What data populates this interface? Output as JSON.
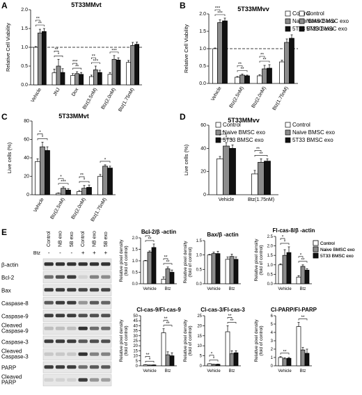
{
  "panel_letters": [
    "A",
    "B",
    "C",
    "D",
    "E"
  ],
  "colors": {
    "control": "#ffffff",
    "naive": "#8c8c8c",
    "bmsc5t33": "#111111",
    "stroke": "#000000"
  },
  "chart_data": [
    {
      "id": "A",
      "type": "bar",
      "title": "5T33MMvt",
      "ylabel": "Relative Cell Viability",
      "ylim": [
        0,
        2.0
      ],
      "yticks": [
        "0.0",
        "0.5",
        "1.0",
        "1.5",
        "2.0"
      ],
      "reference_line": 1.0,
      "legend": "top-right",
      "categories": [
        "Vehicle",
        "JNJ",
        "Dox",
        "Btz(3.5nM)",
        "Btz(2.0nM)",
        "Btz(1.75nM)"
      ],
      "series": [
        {
          "name": "Control",
          "values": [
            1.0,
            0.32,
            0.25,
            0.22,
            0.28,
            0.6
          ],
          "errors": [
            0.02,
            0.1,
            0.05,
            0.04,
            0.05,
            0.05
          ]
        },
        {
          "name": "Naive BMSC exo",
          "values": [
            1.38,
            0.5,
            0.3,
            0.4,
            0.68,
            1.05
          ],
          "errors": [
            0.1,
            0.18,
            0.05,
            0.1,
            0.1,
            0.08
          ]
        },
        {
          "name": "5T33 BMSC exo",
          "values": [
            1.42,
            0.33,
            0.28,
            0.33,
            0.66,
            1.08
          ],
          "errors": [
            0.08,
            0.1,
            0.05,
            0.06,
            0.06,
            0.06
          ]
        }
      ],
      "significance": [
        "**",
        "**",
        "*",
        "**",
        "**",
        "***",
        "***",
        "**",
        "***"
      ]
    },
    {
      "id": "B",
      "type": "bar",
      "title": "5T33MMvv",
      "ylabel": "Relative Cell Viability",
      "ylim": [
        0,
        2.0
      ],
      "yticks": [
        "0.0",
        "0.5",
        "1.0",
        "1.5",
        "2.0"
      ],
      "reference_line": 1.0,
      "legend": "top-right",
      "categories": [
        "Vehicle",
        "Btz(2.5nM)",
        "Btz(2.0nM)",
        "Btz(1.75nM)"
      ],
      "series": [
        {
          "name": "Control",
          "values": [
            1.0,
            0.18,
            0.22,
            0.62
          ],
          "errors": [
            0.02,
            0.02,
            0.03,
            0.05
          ]
        },
        {
          "name": "Naive BMSC exo",
          "values": [
            1.75,
            0.24,
            0.42,
            1.18
          ],
          "errors": [
            0.08,
            0.03,
            0.1,
            0.1
          ]
        },
        {
          "name": "5T33 BMSC exo",
          "values": [
            1.8,
            0.22,
            0.44,
            1.3
          ],
          "errors": [
            0.08,
            0.02,
            0.1,
            0.1
          ]
        }
      ],
      "significance": [
        "***",
        "***",
        "**",
        "**",
        "**",
        "**"
      ]
    },
    {
      "id": "C",
      "type": "bar",
      "title": "5T33MMvt",
      "ylabel": "Live cells (%)",
      "ylim": [
        0,
        80
      ],
      "yticks": [
        "0",
        "20",
        "40",
        "60",
        "80"
      ],
      "legend": "top-right",
      "categories": [
        "Vehicle",
        "Btz(2.5nM)",
        "Btz(2.0nM)",
        "Btz(1.75nM)"
      ],
      "series": [
        {
          "name": "Control",
          "values": [
            36,
            1.5,
            3.5,
            20
          ],
          "errors": [
            3,
            0.5,
            1,
            2
          ]
        },
        {
          "name": "Naive BMSC exo",
          "values": [
            52,
            7,
            7,
            31
          ],
          "errors": [
            5,
            1.5,
            3,
            1.5
          ]
        },
        {
          "name": "5T33 BMSC exo",
          "values": [
            48,
            5,
            8,
            29
          ],
          "errors": [
            4,
            1.5,
            2.5,
            2
          ]
        }
      ],
      "significance": [
        "*",
        "*",
        "***",
        "*",
        "*",
        "**",
        "*"
      ]
    },
    {
      "id": "D",
      "type": "bar",
      "title": "5T33MMvv",
      "ylabel": "Live cells (%)",
      "ylim": [
        0,
        60
      ],
      "yticks": [
        "0",
        "20",
        "40",
        "60"
      ],
      "legend": "top-right",
      "categories": [
        "Vehicle",
        "Btz(1.75nM)"
      ],
      "series": [
        {
          "name": "Control",
          "values": [
            31,
            18
          ],
          "errors": [
            2,
            3
          ]
        },
        {
          "name": "Naive BMSC exo",
          "values": [
            42,
            28
          ],
          "errors": [
            3,
            3
          ]
        },
        {
          "name": "5T33 BMSC exo",
          "values": [
            40,
            29
          ],
          "errors": [
            3,
            2
          ]
        }
      ],
      "significance": [
        "*",
        "*",
        "**",
        "**"
      ]
    },
    {
      "id": "E1",
      "type": "bar",
      "title": "Bcl-2/β -actin",
      "ylabel": "Relative pixel density (fold of control)",
      "ylim": [
        0,
        2.0
      ],
      "yticks": [
        "0.0",
        "0.5",
        "1.0",
        "1.5",
        "2.0"
      ],
      "legend": "none",
      "categories": [
        "Vehicle",
        "Btz"
      ],
      "series": [
        {
          "name": "Control",
          "values": [
            1.0,
            0.2
          ],
          "errors": [
            0.02,
            0.1
          ]
        },
        {
          "name": "Naive BMSC exo",
          "values": [
            1.38,
            0.65
          ],
          "errors": [
            0.05,
            0.08
          ]
        },
        {
          "name": "5T33 BMSC exo",
          "values": [
            1.58,
            0.5
          ],
          "errors": [
            0.15,
            0.1
          ]
        }
      ],
      "significance": [
        "**",
        "***",
        "**",
        "**"
      ]
    },
    {
      "id": "E2",
      "type": "bar",
      "title": "Bax/β -actin",
      "ylabel": "Relative pixel density (fold of control)",
      "ylim": [
        0,
        1.5
      ],
      "yticks": [
        "0.0",
        "0.5",
        "1.0",
        "1.5"
      ],
      "legend": "none",
      "categories": [
        "Vehicle",
        "Btz"
      ],
      "series": [
        {
          "name": "Control",
          "values": [
            1.0,
            0.85
          ],
          "errors": [
            0.02,
            0.08
          ]
        },
        {
          "name": "Naive BMSC exo",
          "values": [
            1.05,
            0.95
          ],
          "errors": [
            0.05,
            0.08
          ]
        },
        {
          "name": "5T33 BMSC exo",
          "values": [
            1.05,
            0.85
          ],
          "errors": [
            0.08,
            0.08
          ]
        }
      ],
      "significance": []
    },
    {
      "id": "E3",
      "type": "bar",
      "title": "Fl-cas-8/β -actin",
      "ylabel": "Relative pixel density (fold of control)",
      "ylim": [
        0,
        2.5
      ],
      "yticks": [
        "0.0",
        "0.5",
        "1.0",
        "1.5",
        "2.0",
        "2.5"
      ],
      "legend": "top-right",
      "categories": [
        "Vehicle",
        "Btz"
      ],
      "series": [
        {
          "name": "Control",
          "values": [
            1.0,
            0.35
          ],
          "errors": [
            0.05,
            0.08
          ]
        },
        {
          "name": "Naive BMSC exo",
          "values": [
            1.5,
            0.92
          ],
          "errors": [
            0.3,
            0.08
          ]
        },
        {
          "name": "5T33 BMSC exo",
          "values": [
            1.65,
            0.72
          ],
          "errors": [
            0.3,
            0.08
          ]
        }
      ],
      "significance": [
        "*",
        "*",
        "**",
        "*"
      ]
    },
    {
      "id": "E4",
      "type": "bar",
      "title": "Cl-cas-9/Fl-cas-9",
      "ylabel": "Relative pixel density (fold of control)",
      "ylim": [
        0,
        50
      ],
      "yticks": [
        "0",
        "5",
        "10",
        "15",
        "20",
        "25",
        "30",
        "35",
        "40",
        "45",
        "50"
      ],
      "legend": "none",
      "categories": [
        "Vehicle",
        "Btz"
      ],
      "series": [
        {
          "name": "Control",
          "values": [
            1.0,
            33
          ],
          "errors": [
            0.1,
            4
          ]
        },
        {
          "name": "Naive BMSC exo",
          "values": [
            0.75,
            11
          ],
          "errors": [
            0.1,
            3
          ]
        },
        {
          "name": "5T33 BMSC exo",
          "values": [
            0.85,
            10
          ],
          "errors": [
            0.1,
            3
          ]
        }
      ],
      "significance": [
        "*",
        "**",
        "**",
        "**"
      ]
    },
    {
      "id": "E5",
      "type": "bar",
      "title": "Cl-cas-3/Fl-cas-3",
      "ylabel": "Relative pixel density (fold of control)",
      "ylim": [
        0,
        25
      ],
      "yticks": [
        "0",
        "5",
        "10",
        "15",
        "20",
        "25"
      ],
      "legend": "none",
      "categories": [
        "Vehicle",
        "Btz"
      ],
      "series": [
        {
          "name": "Control",
          "values": [
            1.0,
            17
          ],
          "errors": [
            0.1,
            3
          ]
        },
        {
          "name": "Naive BMSC exo",
          "values": [
            0.7,
            6
          ],
          "errors": [
            0.1,
            1.5
          ]
        },
        {
          "name": "5T33 BMSC exo",
          "values": [
            0.75,
            6.5
          ],
          "errors": [
            0.1,
            1
          ]
        }
      ],
      "significance": [
        "*",
        "*",
        "**",
        "**"
      ]
    },
    {
      "id": "E6",
      "type": "bar",
      "title": "Cl-PARP/Fl-PARP",
      "ylabel": "Relative pixel density (fold of control)",
      "ylim": [
        0,
        6
      ],
      "yticks": [
        "0",
        "1",
        "2",
        "3",
        "4",
        "5",
        "6"
      ],
      "legend": "top-right",
      "categories": [
        "Vehicle",
        "Btz"
      ],
      "series": [
        {
          "name": "Control",
          "values": [
            1.0,
            4.7
          ],
          "errors": [
            0.1,
            0.5
          ]
        },
        {
          "name": "Naive BMSC exo",
          "values": [
            0.85,
            1.9
          ],
          "errors": [
            0.1,
            0.3
          ]
        },
        {
          "name": "5T33 BMSC exo",
          "values": [
            0.9,
            1.5
          ],
          "errors": [
            0.1,
            0.5
          ]
        }
      ],
      "significance": [
        "**",
        "**"
      ]
    }
  ],
  "western_blot": {
    "lane_labels": [
      "Control",
      "NB exo",
      "5B exo",
      "Control",
      "NB exo",
      "5B exo"
    ],
    "btz_label": "Btz",
    "btz_status": [
      "-",
      "-",
      "-",
      "+",
      "+",
      "+"
    ],
    "rows": [
      {
        "label": "β-actin",
        "intensities": [
          0.9,
          0.9,
          0.9,
          0.9,
          0.9,
          0.9
        ]
      },
      {
        "label": "Bcl-2",
        "intensities": [
          0.6,
          0.75,
          0.85,
          0.1,
          0.5,
          0.45
        ]
      },
      {
        "label": "Bax",
        "intensities": [
          0.85,
          0.85,
          0.85,
          0.8,
          0.8,
          0.8
        ]
      },
      {
        "label": "Caspase-8",
        "intensities": [
          0.7,
          0.85,
          0.85,
          0.4,
          0.7,
          0.65
        ]
      },
      {
        "label": "Caspase-9",
        "intensities": [
          0.85,
          0.85,
          0.85,
          0.75,
          0.75,
          0.75
        ]
      },
      {
        "label": "Cleaved Caspase-9",
        "intensities": [
          0.2,
          0.2,
          0.2,
          0.9,
          0.6,
          0.6
        ]
      },
      {
        "label": "Caspase-3",
        "intensities": [
          0.85,
          0.85,
          0.85,
          0.7,
          0.75,
          0.75
        ]
      },
      {
        "label": "Cleaved Caspase-3",
        "intensities": [
          0.15,
          0.15,
          0.15,
          0.9,
          0.5,
          0.5
        ]
      },
      {
        "label": "PARP",
        "intensities": [
          0.85,
          0.85,
          0.85,
          0.6,
          0.7,
          0.7
        ]
      },
      {
        "label": "Cleaved PARP",
        "intensities": [
          0.1,
          0.1,
          0.1,
          0.85,
          0.4,
          0.35
        ]
      }
    ]
  }
}
